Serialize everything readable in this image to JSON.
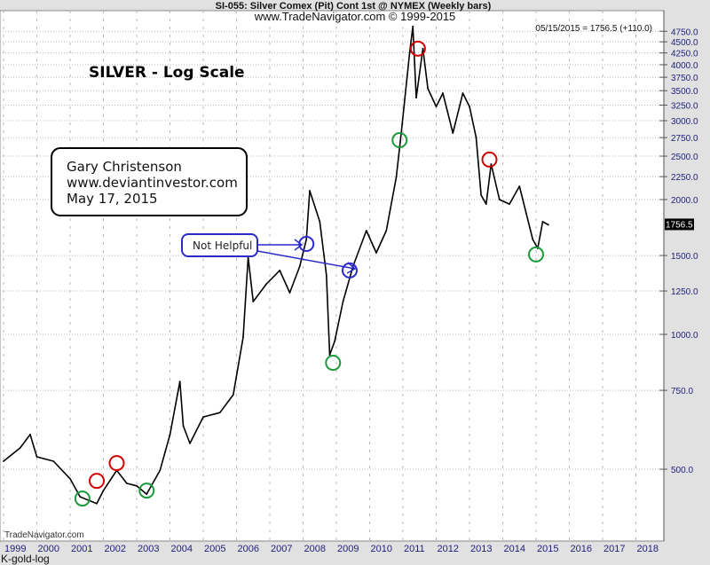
{
  "header": {
    "title": "SI-055:  Silver Comex (Pit) Cont 1st @ NYMEX  (Weekly bars)",
    "subtitle": "www.TradeNavigator.com © 1999-2015",
    "readout": "05/15/2015 = 1756.5 (+110.0)"
  },
  "watermark": "TradeNavigator.com",
  "footer_label": "K-gold-log",
  "last_price_tag": "1756.5",
  "annotations": {
    "chart_title": "SILVER -  Log Scale",
    "author_box": [
      "Gary Christenson",
      "www.deviantinvestor.com",
      "May 17, 2015"
    ],
    "callout": "Not Helpful"
  },
  "chart_data": {
    "type": "line",
    "title": "SILVER -  Log Scale",
    "xlabel": "",
    "ylabel": "",
    "y_scale": "log",
    "xlim": [
      1999,
      2018.6
    ],
    "ylim": [
      346,
      5280
    ],
    "grid": true,
    "x_ticks": [
      "1999",
      "2000",
      "2001",
      "2002",
      "2003",
      "2004",
      "2005",
      "2006",
      "2007",
      "2008",
      "2009",
      "2010",
      "2011",
      "2012",
      "2013",
      "2014",
      "2015",
      "2016",
      "2017",
      "2018"
    ],
    "y_ticks": [
      "4750.0",
      "4500.0",
      "4250.0",
      "4000.0",
      "3750.0",
      "3500.0",
      "3250.0",
      "3000.0",
      "2750.0",
      "2500.0",
      "2250.0",
      "2000.0",
      "1500.0",
      "1250.0",
      "1000.0",
      "750.0",
      "500.0"
    ],
    "series": [
      {
        "x": [
          1999.0,
          1999.5,
          1999.8,
          2000.0,
          2000.5,
          2001.0,
          2001.3,
          2001.8,
          2002.0,
          2002.4,
          2002.7,
          2003.0,
          2003.3,
          2003.7,
          2004.0,
          2004.3,
          2004.4,
          2004.6,
          2005.0,
          2005.5,
          2005.9,
          2006.2,
          2006.35,
          2006.5,
          2006.9,
          2007.3,
          2007.6,
          2007.9,
          2008.1,
          2008.2,
          2008.5,
          2008.7,
          2008.8,
          2008.95,
          2009.2,
          2009.5,
          2009.9,
          2010.2,
          2010.5,
          2010.8,
          2010.95,
          2011.2,
          2011.3,
          2011.4,
          2011.6,
          2011.75,
          2012.0,
          2012.2,
          2012.5,
          2012.8,
          2013.0,
          2013.2,
          2013.35,
          2013.5,
          2013.65,
          2013.9,
          2014.2,
          2014.5,
          2014.7,
          2014.9,
          2015.05,
          2015.2,
          2015.37
        ],
        "y": [
          521,
          558,
          598,
          533,
          521,
          476,
          434,
          419,
          448,
          497,
          465,
          459,
          440,
          497,
          597,
          785,
          625,
          571,
          654,
          669,
          733,
          986,
          1487,
          1184,
          1297,
          1389,
          1239,
          1420,
          1629,
          2093,
          1785,
          1357,
          900,
          965,
          1184,
          1420,
          1705,
          1521,
          1705,
          2243,
          2815,
          4245,
          4870,
          3376,
          4345,
          3537,
          3227,
          3455,
          2815,
          3455,
          3227,
          2750,
          2046,
          1954,
          2400,
          2000,
          1954,
          2141,
          1867,
          1629,
          1556,
          1785,
          1756.5
        ]
      }
    ],
    "markers": [
      {
        "color": "#d00000",
        "x": 2001.8,
        "y": 471
      },
      {
        "color": "#d00000",
        "x": 2002.4,
        "y": 516
      },
      {
        "color": "#d00000",
        "x": 2011.45,
        "y": 4345
      },
      {
        "color": "#d00000",
        "x": 2013.6,
        "y": 2456
      },
      {
        "color": "#1a9a3a",
        "x": 2001.37,
        "y": 430
      },
      {
        "color": "#1a9a3a",
        "x": 2003.3,
        "y": 448
      },
      {
        "color": "#1a9a3a",
        "x": 2008.9,
        "y": 864
      },
      {
        "color": "#1a9a3a",
        "x": 2010.9,
        "y": 2714
      },
      {
        "color": "#1a9a3a",
        "x": 2015.0,
        "y": 1508
      },
      {
        "color": "#2b2bc8",
        "x": 2008.1,
        "y": 1592
      },
      {
        "color": "#2b2bc8",
        "x": 2009.4,
        "y": 1389
      }
    ],
    "colors": {
      "price": "#000000",
      "axis_text": "#1e1e7a",
      "callout": "#2b2bc8"
    }
  }
}
